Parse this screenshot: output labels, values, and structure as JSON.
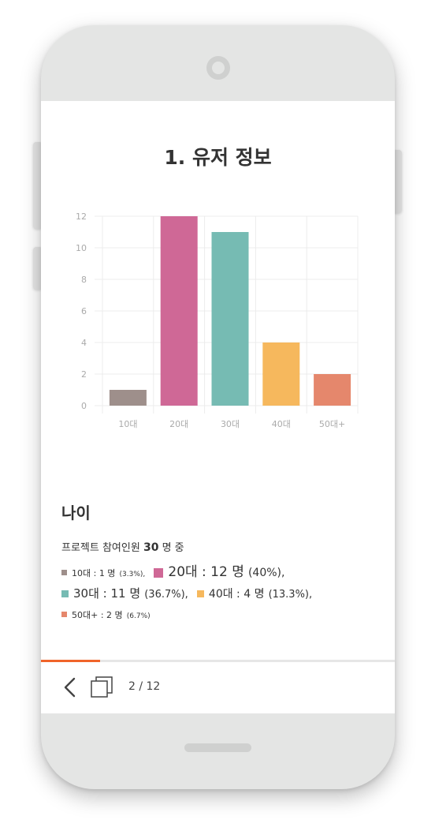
{
  "page": {
    "title": "1. 유저 정보",
    "section_heading": "나이",
    "summary_prefix": "프로젝트 참여인원",
    "summary_count": "30",
    "summary_suffix": "명 중"
  },
  "legend": [
    {
      "label": "10대 : 1 명",
      "pct": "(3.3%),",
      "color": "#9e8f8b"
    },
    {
      "label": "20대 : 12 명",
      "pct": "(40%),",
      "color": "#cf6896"
    },
    {
      "label": "30대 : 11 명",
      "pct": "(36.7%),",
      "color": "#76bbb3"
    },
    {
      "label": "40대 : 4 명",
      "pct": "(13.3%),",
      "color": "#f6b85d"
    },
    {
      "label": "50대+ : 2 명",
      "pct": "(6.7%)",
      "color": "#e5876c"
    }
  ],
  "footer": {
    "page_indicator": "2 / 12",
    "progress": 0.166,
    "progress_color": "#f0642a",
    "back_icon": "chevron-left-icon",
    "pages_icon": "copy-pages-icon"
  },
  "chart_data": {
    "type": "bar",
    "categories": [
      "10대",
      "20대",
      "30대",
      "40대",
      "50대+"
    ],
    "values": [
      1,
      12,
      11,
      4,
      2
    ],
    "colors": [
      "#9e8f8b",
      "#cf6896",
      "#76bbb3",
      "#f6b85d",
      "#e5876c"
    ],
    "ylim": [
      0,
      12
    ],
    "yticks": [
      0,
      2,
      4,
      6,
      8,
      10,
      12
    ],
    "grid": true,
    "legend": "none"
  }
}
